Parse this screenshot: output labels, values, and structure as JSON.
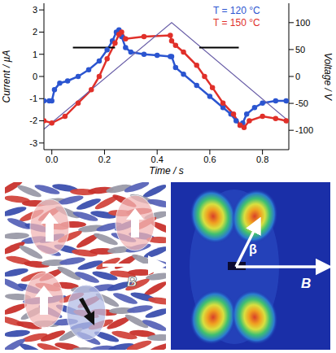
{
  "chart_data": {
    "type": "line",
    "x_label": "Time / s",
    "y_label": "Current / µA",
    "y2_label": "Voltage / V",
    "xlim": [
      -0.03,
      0.9
    ],
    "xticks": [
      {
        "value": 0,
        "label": "0.0"
      },
      {
        "value": 0.2,
        "label": "0.2"
      },
      {
        "value": 0.4,
        "label": "0.4"
      },
      {
        "value": 0.6,
        "label": "0.6"
      },
      {
        "value": 0.8,
        "label": "0.8"
      }
    ],
    "ylim": [
      -3.3,
      3.3
    ],
    "yticks": [
      -3,
      -2,
      -1,
      0,
      1,
      2,
      3
    ],
    "y2lim": [
      -136,
      136
    ],
    "y2ticks": [
      -100,
      -50,
      0,
      50,
      100
    ],
    "legend": "top right",
    "series": [
      {
        "name": "T = 120 °C",
        "color": "#2b55d0",
        "marker": "circle",
        "line_style": "solid",
        "x": [
          -0.03,
          -0.01,
          0.0,
          0.01,
          0.03,
          0.06,
          0.1,
          0.14,
          0.18,
          0.21,
          0.23,
          0.245,
          0.255,
          0.265,
          0.28,
          0.3,
          0.35,
          0.4,
          0.45,
          0.455,
          0.47,
          0.5,
          0.55,
          0.6,
          0.65,
          0.68,
          0.7,
          0.715,
          0.725,
          0.74,
          0.77,
          0.8,
          0.85,
          0.89
        ],
        "values": [
          -1.1,
          -1.1,
          -1.1,
          -0.6,
          -0.3,
          -0.2,
          0.0,
          0.3,
          0.7,
          1.2,
          1.6,
          2.0,
          2.1,
          1.8,
          1.3,
          1.1,
          1.0,
          0.95,
          0.9,
          0.9,
          0.4,
          0.1,
          -0.4,
          -0.9,
          -1.4,
          -1.7,
          -2.0,
          -2.2,
          -2.1,
          -1.7,
          -1.4,
          -1.2,
          -1.1,
          -1.1
        ]
      },
      {
        "name": "T = 150 °C",
        "color": "#e0302a",
        "marker": "circle",
        "line_style": "solid",
        "x": [
          -0.03,
          0.0,
          0.05,
          0.1,
          0.15,
          0.18,
          0.21,
          0.24,
          0.255,
          0.265,
          0.28,
          0.35,
          0.45,
          0.455,
          0.47,
          0.5,
          0.55,
          0.58,
          0.61,
          0.65,
          0.69,
          0.715,
          0.73,
          0.75,
          0.8,
          0.85,
          0.89
        ],
        "values": [
          -2.0,
          -2.1,
          -1.8,
          -1.2,
          -0.6,
          0.0,
          0.8,
          1.5,
          1.9,
          2.0,
          1.7,
          1.8,
          1.85,
          1.6,
          1.4,
          1.1,
          0.5,
          0.0,
          -0.5,
          -1.2,
          -1.7,
          -2.2,
          -2.3,
          -2.0,
          -1.8,
          -1.9,
          -2.0
        ]
      },
      {
        "color": "#6a5fa8",
        "axis": "y2",
        "marker": "none",
        "line_style": "solid",
        "x": [
          -0.03,
          0.455,
          0.9
        ],
        "values": [
          -98,
          100,
          -83
        ]
      },
      {
        "color": "#000000",
        "marker": "none",
        "line_style": "solid",
        "x": [
          0.08,
          0.24
        ],
        "values": [
          1.3,
          1.3
        ]
      },
      {
        "color": "#000000",
        "marker": "none",
        "line_style": "solid",
        "x": [
          0.56,
          0.71
        ],
        "values": [
          1.3,
          1.3
        ]
      }
    ]
  },
  "illustrations": {
    "left": {
      "arrow_label": "B"
    },
    "right": {
      "arrow_label": "B",
      "angle_label": "β"
    }
  }
}
